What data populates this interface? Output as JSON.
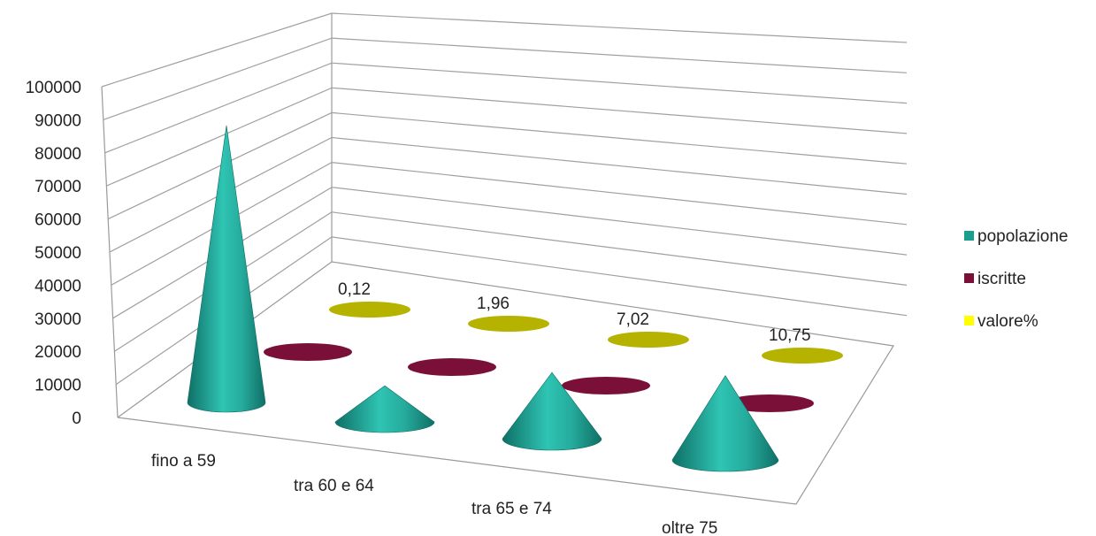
{
  "chart_data": {
    "type": "bar",
    "style": "3d-cone",
    "title": "",
    "xlabel": "",
    "ylabel": "",
    "ylim": [
      0,
      100000
    ],
    "yticks": [
      0,
      10000,
      20000,
      30000,
      40000,
      50000,
      60000,
      70000,
      80000,
      90000,
      100000
    ],
    "categories": [
      "fino a 59",
      "tra 60 e 64",
      "tra 65 e 74",
      "oltre 75"
    ],
    "series": [
      {
        "name": "popolazione",
        "color": "#1a9e8f",
        "values": [
          92000,
          12000,
          22000,
          28000
        ]
      },
      {
        "name": "iscritte",
        "color": "#7a1038",
        "values": [
          0,
          0,
          0,
          0
        ]
      },
      {
        "name": "valore%",
        "color": "#b5b300",
        "values": [
          0.12,
          1.96,
          7.02,
          10.75
        ],
        "data_labels": [
          "0,12",
          "1,96",
          "7,02",
          "10,75"
        ]
      }
    ],
    "legend": {
      "position": "right",
      "swatch_colors": [
        "#1a9e8f",
        "#7a1038",
        "#ffff00"
      ]
    },
    "grid": true
  }
}
